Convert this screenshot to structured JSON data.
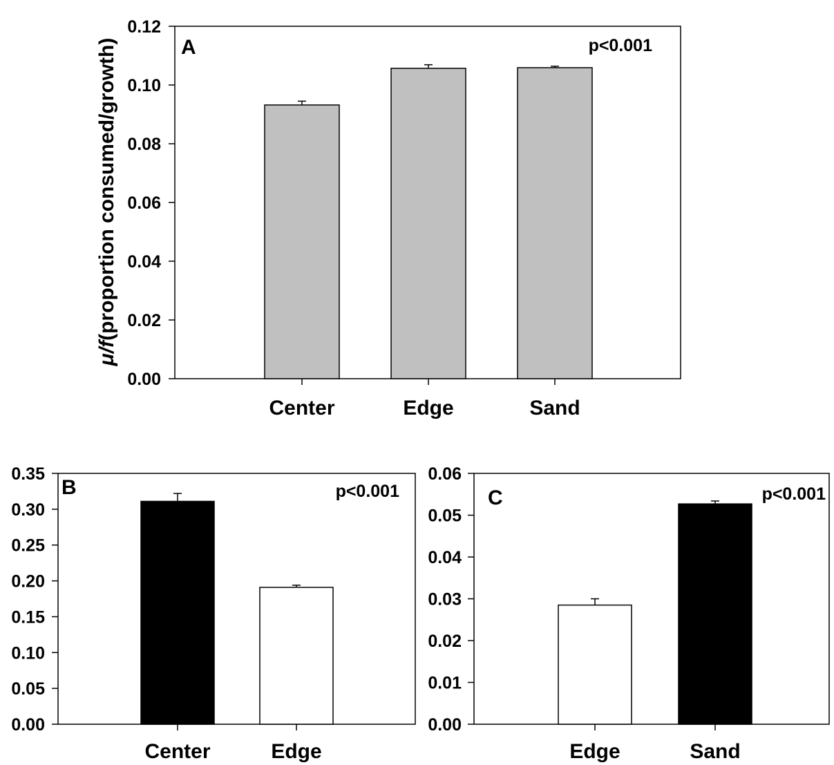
{
  "figure": {
    "ylabel_symbol": "μ/f",
    "ylabel_text": "(proportion consumed/growth)"
  },
  "chart_data": [
    {
      "type": "bar",
      "panel": "A",
      "pvalue": "p<0.001",
      "categories": [
        "Center",
        "Edge",
        "Sand"
      ],
      "values": [
        0.0932,
        0.1057,
        0.1059
      ],
      "errors": [
        0.0013,
        0.0012,
        0.0005
      ],
      "bar_colors": [
        "#c0c0c0",
        "#c0c0c0",
        "#c0c0c0"
      ],
      "ylim": [
        0,
        0.12
      ],
      "yticks": [
        "0.00",
        "0.02",
        "0.04",
        "0.06",
        "0.08",
        "0.10",
        "0.12"
      ],
      "ylabel": "μ/f(proportion consumed/growth)",
      "grid": false
    },
    {
      "type": "bar",
      "panel": "B",
      "pvalue": "p<0.001",
      "categories": [
        "Center",
        "Edge"
      ],
      "values": [
        0.311,
        0.191
      ],
      "errors": [
        0.011,
        0.003
      ],
      "bar_colors": [
        "#000000",
        "#ffffff"
      ],
      "ylim": [
        0,
        0.35
      ],
      "yticks": [
        "0.00",
        "0.05",
        "0.10",
        "0.15",
        "0.20",
        "0.25",
        "0.30",
        "0.35"
      ],
      "grid": false
    },
    {
      "type": "bar",
      "panel": "C",
      "pvalue": "p<0.001",
      "categories": [
        "Edge",
        "Sand"
      ],
      "values": [
        0.0285,
        0.0527
      ],
      "errors": [
        0.0015,
        0.0007
      ],
      "bar_colors": [
        "#ffffff",
        "#000000"
      ],
      "ylim": [
        0,
        0.06
      ],
      "yticks": [
        "0.00",
        "0.01",
        "0.02",
        "0.03",
        "0.04",
        "0.05",
        "0.06"
      ],
      "grid": false
    }
  ]
}
